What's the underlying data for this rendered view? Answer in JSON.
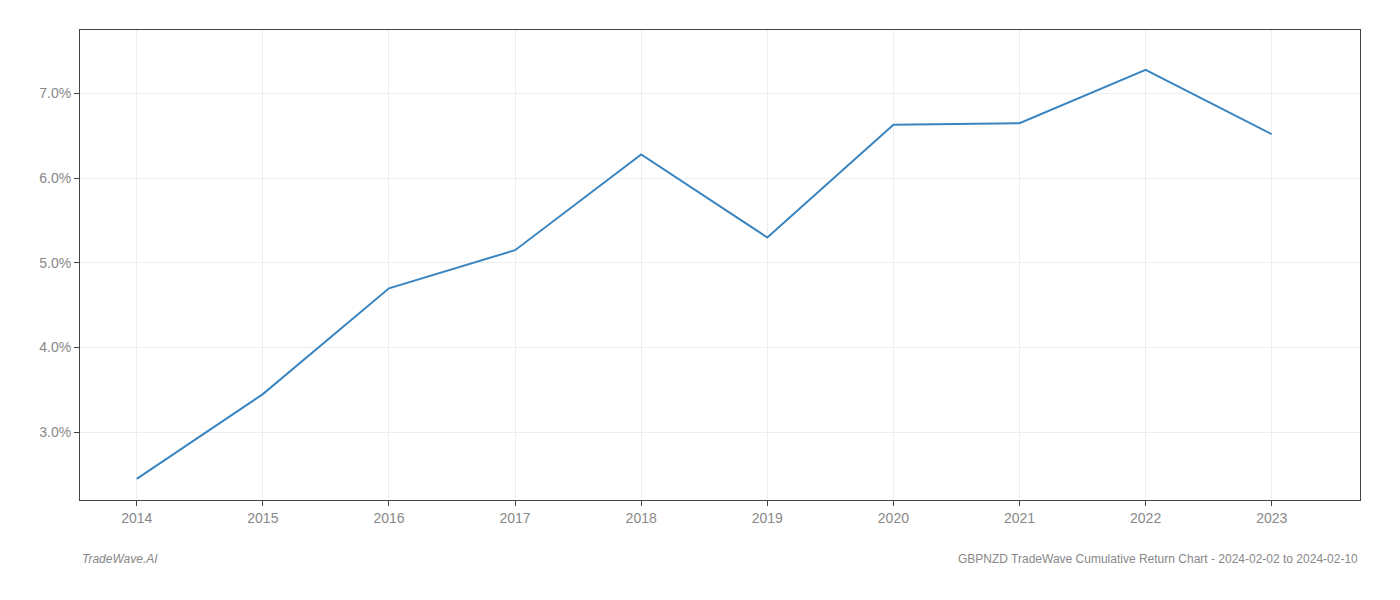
{
  "chart_data": {
    "type": "line",
    "x": [
      2014,
      2015,
      2016,
      2017,
      2018,
      2019,
      2020,
      2021,
      2022,
      2023
    ],
    "values": [
      2.45,
      3.45,
      4.7,
      5.15,
      6.28,
      5.3,
      6.63,
      6.65,
      7.28,
      6.52
    ],
    "color": "#3a85c0",
    "xlim": [
      2013.55,
      2023.7
    ],
    "xticks": [
      2014,
      2015,
      2016,
      2017,
      2018,
      2019,
      2020,
      2021,
      2022,
      2023
    ],
    "ylim": [
      2.2,
      7.75
    ],
    "yticks": [
      {
        "value": 3.0,
        "label": "3.0%"
      },
      {
        "value": 4.0,
        "label": "4.0%"
      },
      {
        "value": 5.0,
        "label": "5.0%"
      },
      {
        "value": 6.0,
        "label": "6.0%"
      },
      {
        "value": 7.0,
        "label": "7.0%"
      }
    ],
    "grid": true,
    "annotations": [
      "TradeWave.AI",
      "GBPNZD TradeWave Cumulative Return Chart - 2024-02-02 to 2024-02-10"
    ]
  }
}
